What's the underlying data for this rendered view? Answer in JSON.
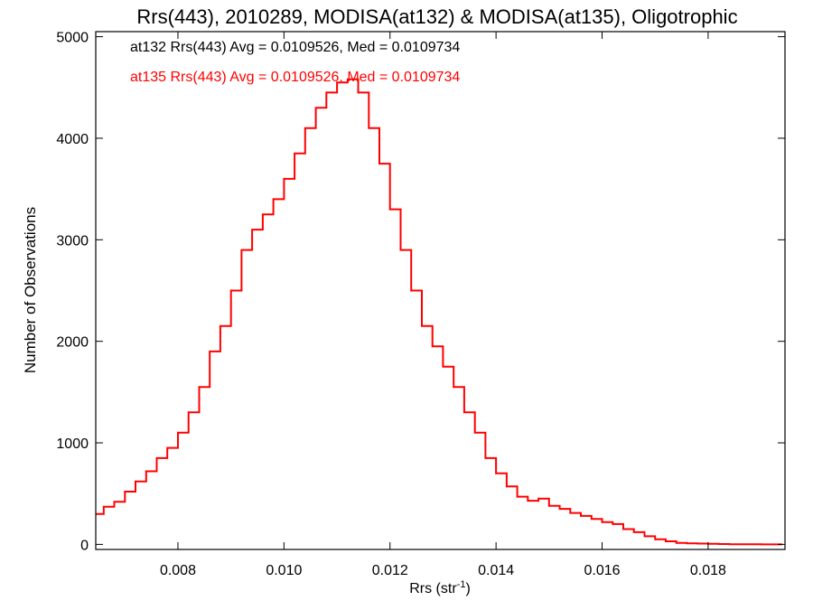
{
  "chart_data": {
    "type": "line",
    "title": "Rrs(443), 2010289, MODISA(at132) & MODISA(at135), Oligotrophic",
    "xlabel_main": "Rrs (str",
    "xlabel_sup": "-1",
    "xlabel_close": ")",
    "ylabel": "Number of Observations",
    "xlim": [
      0.00645,
      0.01945
    ],
    "ylim": [
      -50,
      5050
    ],
    "x_ticks": [
      0.008,
      0.01,
      0.012,
      0.014,
      0.016,
      0.018
    ],
    "x_tick_labels": [
      "0.008",
      "0.010",
      "0.012",
      "0.014",
      "0.016",
      "0.018"
    ],
    "y_ticks": [
      0,
      1000,
      2000,
      3000,
      4000,
      5000
    ],
    "y_tick_labels": [
      "0",
      "1000",
      "2000",
      "3000",
      "4000",
      "5000"
    ],
    "grid": false,
    "annotations": [
      {
        "text": "at132 Rrs(443) Avg = 0.0109526, Med = 0.0109734",
        "color": "#000000"
      },
      {
        "text": "at135 Rrs(443) Avg = 0.0109526, Med = 0.0109734",
        "color": "#ff0000"
      }
    ],
    "series": [
      {
        "color": "#ff0000",
        "style": "step",
        "x": [
          0.0065,
          0.0067,
          0.0069,
          0.0071,
          0.0073,
          0.0075,
          0.0077,
          0.0079,
          0.0081,
          0.0083,
          0.0085,
          0.0087,
          0.0089,
          0.0091,
          0.0093,
          0.0095,
          0.0097,
          0.0099,
          0.0101,
          0.0103,
          0.0105,
          0.0107,
          0.0109,
          0.0111,
          0.0113,
          0.0115,
          0.0117,
          0.0119,
          0.0121,
          0.0123,
          0.0125,
          0.0127,
          0.0129,
          0.0131,
          0.0133,
          0.0135,
          0.0137,
          0.0139,
          0.0141,
          0.0143,
          0.0145,
          0.0147,
          0.0149,
          0.0151,
          0.0153,
          0.0155,
          0.0157,
          0.0159,
          0.0161,
          0.0163,
          0.0165,
          0.0167,
          0.0169,
          0.0171,
          0.0173,
          0.0175,
          0.0177,
          0.0179,
          0.0181,
          0.0183,
          0.0185,
          0.0187,
          0.0189,
          0.0191,
          0.0193
        ],
        "y": [
          300,
          370,
          420,
          520,
          620,
          720,
          850,
          950,
          1100,
          1300,
          1550,
          1900,
          2150,
          2500,
          2900,
          3100,
          3250,
          3400,
          3600,
          3850,
          4100,
          4300,
          4450,
          4550,
          4580,
          4450,
          4100,
          3750,
          3300,
          2900,
          2500,
          2150,
          1950,
          1750,
          1550,
          1300,
          1100,
          850,
          700,
          570,
          470,
          430,
          450,
          380,
          350,
          310,
          280,
          250,
          220,
          200,
          150,
          120,
          80,
          50,
          30,
          15,
          10,
          8,
          5,
          3,
          2,
          1,
          1,
          0,
          0
        ]
      }
    ]
  }
}
